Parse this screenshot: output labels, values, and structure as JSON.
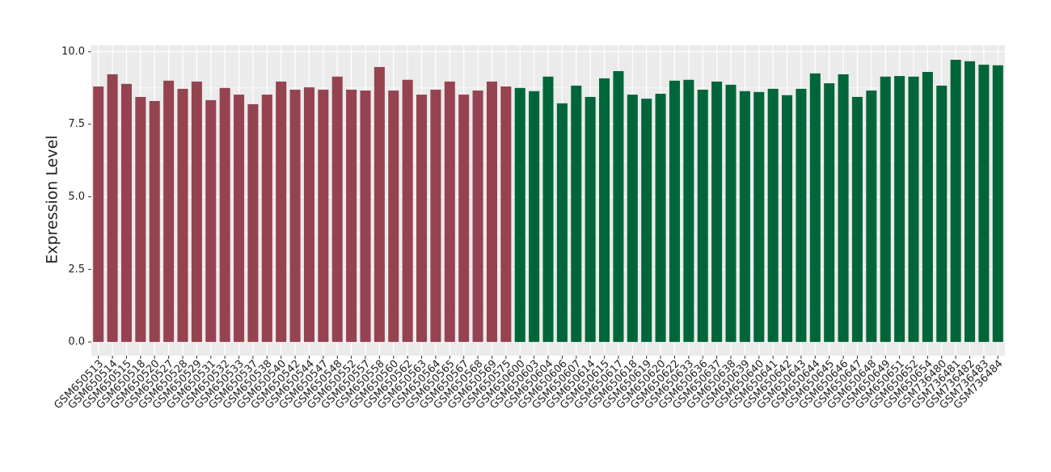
{
  "chart_data": {
    "type": "bar",
    "y_label": "Expression Level",
    "categories": [
      "GSM650513",
      "GSM650514",
      "GSM650515",
      "GSM650518",
      "GSM650520",
      "GSM650527",
      "GSM650528",
      "GSM650529",
      "GSM650531",
      "GSM650532",
      "GSM650533",
      "GSM650537",
      "GSM650538",
      "GSM650540",
      "GSM650542",
      "GSM650544",
      "GSM650547",
      "GSM650548",
      "GSM650552",
      "GSM650557",
      "GSM650558",
      "GSM650560",
      "GSM650562",
      "GSM650563",
      "GSM650564",
      "GSM650565",
      "GSM650567",
      "GSM650568",
      "GSM650569",
      "GSM650575",
      "GSM650600",
      "GSM650603",
      "GSM650604",
      "GSM650606",
      "GSM650607",
      "GSM650614",
      "GSM650615",
      "GSM650617",
      "GSM650618",
      "GSM650619",
      "GSM650620",
      "GSM650622",
      "GSM650633",
      "GSM650636",
      "GSM650637",
      "GSM650638",
      "GSM650639",
      "GSM650640",
      "GSM650641",
      "GSM650642",
      "GSM650643",
      "GSM650644",
      "GSM650645",
      "GSM650646",
      "GSM650647",
      "GSM650648",
      "GSM650649",
      "GSM650651",
      "GSM650652",
      "GSM650654",
      "GSM736480",
      "GSM736481",
      "GSM736482",
      "GSM736483",
      "GSM736484"
    ],
    "values": [
      8.8,
      9.22,
      8.89,
      8.44,
      8.3,
      9.0,
      8.72,
      8.97,
      8.33,
      8.75,
      8.52,
      8.19,
      8.52,
      8.97,
      8.69,
      8.77,
      8.69,
      9.14,
      8.69,
      8.66,
      9.47,
      8.66,
      9.03,
      8.52,
      8.69,
      8.97,
      8.52,
      8.66,
      8.97,
      8.8,
      8.75,
      8.64,
      9.14,
      8.22,
      8.83,
      8.44,
      9.08,
      9.33,
      8.52,
      8.38,
      8.55,
      9.0,
      9.03,
      8.69,
      8.97,
      8.86,
      8.64,
      8.61,
      8.72,
      8.5,
      8.72,
      9.25,
      8.91,
      9.22,
      8.44,
      8.66,
      9.14,
      9.16,
      9.14,
      9.3,
      8.83,
      9.72,
      9.67,
      9.55,
      9.53
    ],
    "colors": [
      "#964350",
      "#964350",
      "#964350",
      "#964350",
      "#964350",
      "#964350",
      "#964350",
      "#964350",
      "#964350",
      "#964350",
      "#964350",
      "#964350",
      "#964350",
      "#964350",
      "#964350",
      "#964350",
      "#964350",
      "#964350",
      "#964350",
      "#964350",
      "#964350",
      "#964350",
      "#964350",
      "#964350",
      "#964350",
      "#964350",
      "#964350",
      "#964350",
      "#964350",
      "#964350",
      "#006639",
      "#006639",
      "#006639",
      "#006639",
      "#006639",
      "#006639",
      "#006639",
      "#006639",
      "#006639",
      "#006639",
      "#006639",
      "#006639",
      "#006639",
      "#006639",
      "#006639",
      "#006639",
      "#006639",
      "#006639",
      "#006639",
      "#006639",
      "#006639",
      "#006639",
      "#006639",
      "#006639",
      "#006639",
      "#006639",
      "#006639",
      "#006639",
      "#006639",
      "#006639",
      "#006639",
      "#006639",
      "#006639",
      "#006639",
      "#006639"
    ],
    "ylim": [
      -0.47,
      10.22
    ],
    "yticks": [
      {
        "value": 0,
        "label": "0.0"
      },
      2.5,
      {
        "value": 5,
        "label": "5.0"
      },
      7.5,
      {
        "value": 10,
        "label": "10.0"
      }
    ],
    "grid": true
  }
}
